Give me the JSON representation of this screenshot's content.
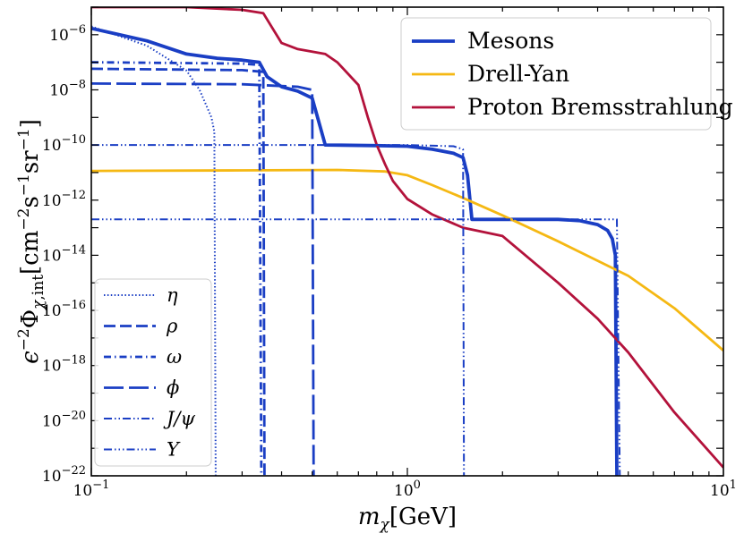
{
  "chart_data": {
    "type": "line",
    "xlabel": "m_χ[GeV]",
    "ylabel": "ε⁻²Φ_χ,int[cm⁻²s⁻¹sr⁻¹]",
    "xscale": "log",
    "yscale": "log",
    "xlim": [
      0.1,
      10
    ],
    "ylim": [
      1e-22,
      1e-05
    ],
    "x_ticks": [
      {
        "value": 0.1,
        "base": "10",
        "exp": "−1"
      },
      {
        "value": 1,
        "base": "10",
        "exp": "0"
      },
      {
        "value": 10,
        "base": "10",
        "exp": "1"
      }
    ],
    "y_ticks": [
      {
        "value": 1e-22,
        "base": "10",
        "exp": "−22"
      },
      {
        "value": 1e-20,
        "base": "10",
        "exp": "−20"
      },
      {
        "value": 1e-18,
        "base": "10",
        "exp": "−18"
      },
      {
        "value": 1e-16,
        "base": "10",
        "exp": "−16"
      },
      {
        "value": 1e-14,
        "base": "10",
        "exp": "−14"
      },
      {
        "value": 1e-12,
        "base": "10",
        "exp": "−12"
      },
      {
        "value": 1e-10,
        "base": "10",
        "exp": "−10"
      },
      {
        "value": 1e-08,
        "base": "10",
        "exp": "−8"
      },
      {
        "value": 1e-06,
        "base": "10",
        "exp": "−6"
      }
    ],
    "grid": false,
    "legend_placement": "top-right",
    "series": [
      {
        "name": "Mesons",
        "color": "#1a3ec4",
        "dash": "solid",
        "width": "thick",
        "points": [
          [
            0.1,
            1.7e-06
          ],
          [
            0.15,
            6e-07
          ],
          [
            0.2,
            2e-07
          ],
          [
            0.25,
            1.4e-07
          ],
          [
            0.3,
            1.2e-07
          ],
          [
            0.34,
            1e-07
          ],
          [
            0.36,
            3e-08
          ],
          [
            0.4,
            1.3e-08
          ],
          [
            0.45,
            9e-09
          ],
          [
            0.5,
            5e-09
          ],
          [
            0.55,
            1e-10
          ],
          [
            0.8,
            9.5e-11
          ],
          [
            1.0,
            9e-11
          ],
          [
            1.2,
            7e-11
          ],
          [
            1.4,
            5e-11
          ],
          [
            1.5,
            3.5e-11
          ],
          [
            1.55,
            8e-12
          ],
          [
            1.6,
            2e-13
          ],
          [
            2.0,
            2e-13
          ],
          [
            3.0,
            2e-13
          ],
          [
            3.5,
            1.8e-13
          ],
          [
            4.0,
            1.3e-13
          ],
          [
            4.3,
            8e-14
          ],
          [
            4.45,
            4e-14
          ],
          [
            4.55,
            1e-14
          ],
          [
            4.6,
            1e-22
          ]
        ]
      },
      {
        "name": "Drell-Yan",
        "color": "#f5b813",
        "dash": "solid",
        "width": "medium",
        "points": [
          [
            0.1,
            1.15e-11
          ],
          [
            0.3,
            1.2e-11
          ],
          [
            0.6,
            1.25e-11
          ],
          [
            0.85,
            1.1e-11
          ],
          [
            1.0,
            8e-12
          ],
          [
            1.2,
            3.5e-12
          ],
          [
            1.5,
            1.2e-12
          ],
          [
            2.0,
            2.8e-13
          ],
          [
            3.0,
            3.2e-14
          ],
          [
            5.0,
            1.8e-15
          ],
          [
            7.0,
            1.2e-16
          ],
          [
            10.0,
            3.5e-18
          ]
        ]
      },
      {
        "name": "Proton Bremsstrahlung",
        "color": "#b3123b",
        "dash": "solid",
        "width": "medium",
        "points": [
          [
            0.1,
            1e-05
          ],
          [
            0.2,
            1e-05
          ],
          [
            0.3,
            8e-06
          ],
          [
            0.35,
            6e-06
          ],
          [
            0.4,
            5e-07
          ],
          [
            0.45,
            3e-07
          ],
          [
            0.55,
            2e-07
          ],
          [
            0.6,
            1e-07
          ],
          [
            0.7,
            1.5e-08
          ],
          [
            0.75,
            1e-09
          ],
          [
            0.8,
            1e-10
          ],
          [
            0.85,
            2e-11
          ],
          [
            0.9,
            5e-12
          ],
          [
            1.0,
            1.1e-12
          ],
          [
            1.2,
            3e-13
          ],
          [
            1.5,
            1e-13
          ],
          [
            2.0,
            5e-14
          ],
          [
            3.0,
            1e-15
          ],
          [
            4.0,
            5e-17
          ],
          [
            5.0,
            3e-18
          ],
          [
            7.0,
            2e-20
          ],
          [
            10.0,
            2e-22
          ]
        ]
      },
      {
        "name": "η",
        "color": "#1a3ec4",
        "dash": "dotted",
        "width": "thin",
        "legend": "mesons",
        "points": [
          [
            0.1,
            2e-06
          ],
          [
            0.15,
            4e-07
          ],
          [
            0.2,
            5e-08
          ],
          [
            0.22,
            1e-08
          ],
          [
            0.24,
            1e-09
          ],
          [
            0.245,
            3e-10
          ],
          [
            0.2475,
            1e-22
          ]
        ]
      },
      {
        "name": "ρ",
        "color": "#1a3ec4",
        "dash": "dashed",
        "width": "medium",
        "legend": "mesons",
        "points": [
          [
            0.1,
            5.8e-08
          ],
          [
            0.3,
            5.2e-08
          ],
          [
            0.35,
            4.5e-08
          ],
          [
            0.353,
            1e-22
          ]
        ]
      },
      {
        "name": "ω",
        "color": "#1a3ec4",
        "dash": "dashdot",
        "width": "medium",
        "legend": "mesons",
        "points": [
          [
            0.1,
            1e-07
          ],
          [
            0.3,
            9e-08
          ],
          [
            0.34,
            8e-08
          ],
          [
            0.345,
            1e-22
          ]
        ]
      },
      {
        "name": "ϕ",
        "color": "#1a3ec4",
        "dash": "longdash",
        "width": "medium",
        "legend": "mesons",
        "points": [
          [
            0.1,
            1.7e-08
          ],
          [
            0.3,
            1.6e-08
          ],
          [
            0.45,
            1.3e-08
          ],
          [
            0.5,
            1e-08
          ],
          [
            0.505,
            1e-22
          ]
        ]
      },
      {
        "name": "J/ψ",
        "color": "#1a3ec4",
        "dash": "dashdotdot",
        "width": "thin",
        "legend": "mesons",
        "points": [
          [
            0.1,
            1e-10
          ],
          [
            1.0,
            1e-10
          ],
          [
            1.4,
            9e-11
          ],
          [
            1.5,
            7e-11
          ],
          [
            1.51,
            1e-22
          ]
        ]
      },
      {
        "name": "Υ",
        "color": "#1a3ec4",
        "dash": "dashdotdotdot",
        "width": "thin",
        "legend": "mesons",
        "points": [
          [
            0.1,
            2e-13
          ],
          [
            4.6,
            2e-13
          ],
          [
            4.7,
            1e-22
          ]
        ]
      }
    ]
  }
}
